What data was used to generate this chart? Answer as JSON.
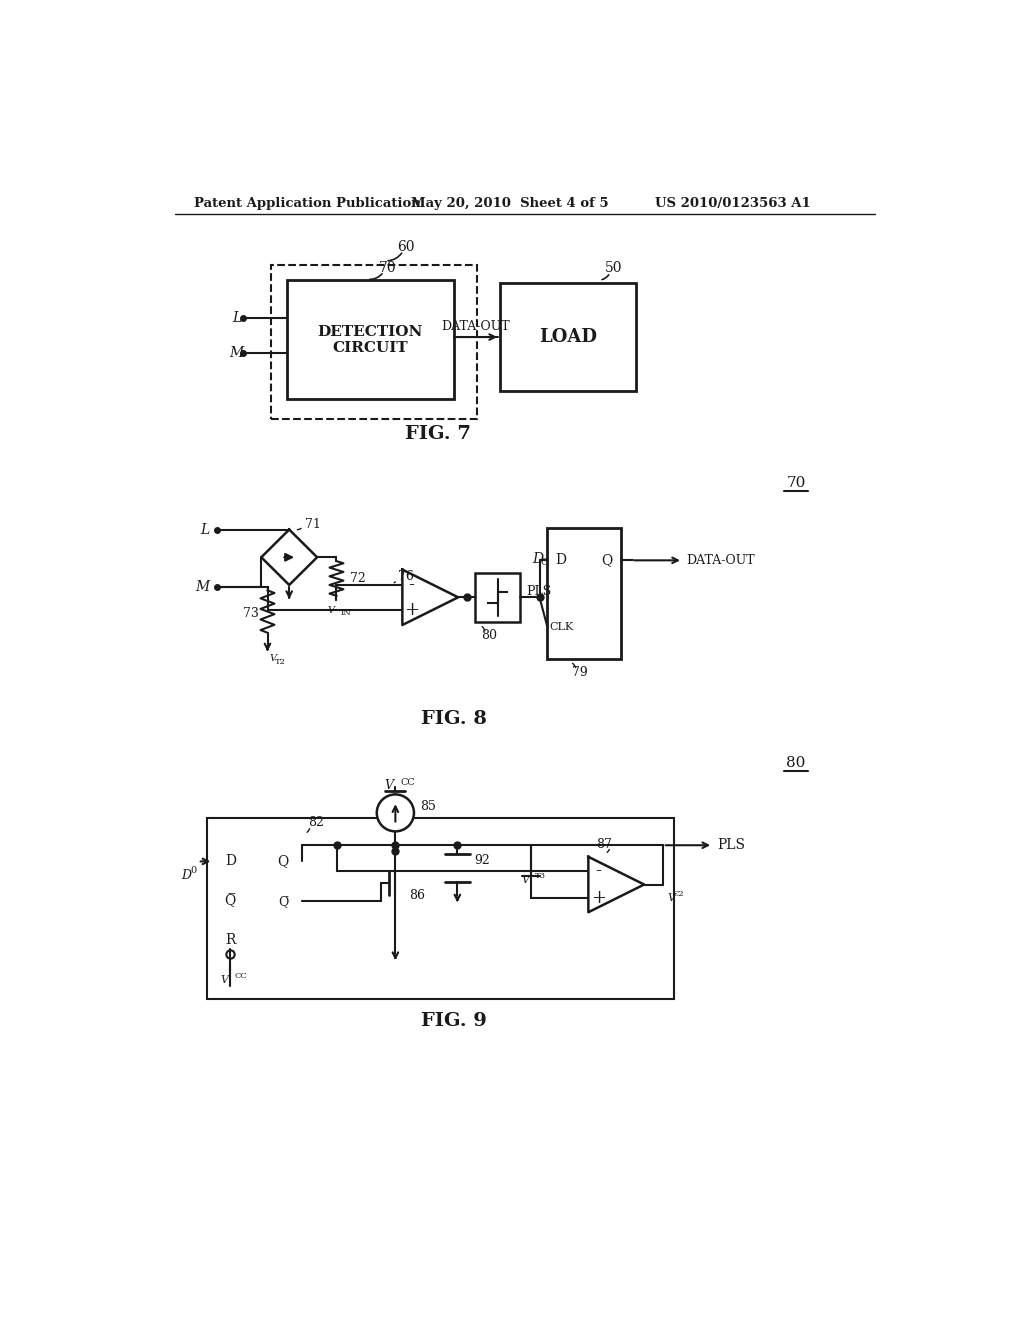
{
  "background_color": "#ffffff",
  "header_left": "Patent Application Publication",
  "header_mid": "May 20, 2010  Sheet 4 of 5",
  "header_right": "US 2010/0123563 A1",
  "fig7_label": "FIG. 7",
  "fig8_label": "FIG. 8",
  "fig9_label": "FIG. 9",
  "line_color": "#1a1a1a",
  "text_color": "#1a1a1a"
}
